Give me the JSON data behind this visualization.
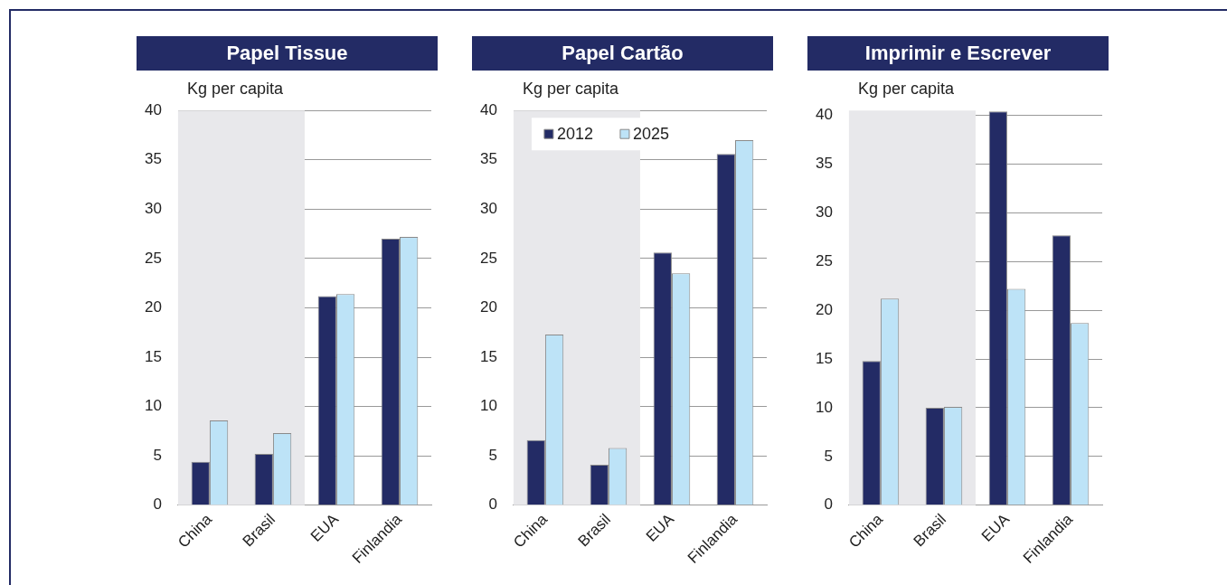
{
  "chart_data": [
    {
      "type": "bar",
      "title": "Papel Tissue",
      "ylabel": "Kg per capita",
      "categories": [
        "China",
        "Brasil",
        "EUA",
        "Finlandia"
      ],
      "series": [
        {
          "color": "#232b65",
          "values": [
            4.4,
            5.2,
            21.2,
            27.0
          ]
        },
        {
          "color": "#bde3f7",
          "values": [
            8.6,
            7.3,
            21.4,
            27.2
          ]
        }
      ],
      "ylim": [
        0,
        40
      ],
      "yticks": [
        0,
        5,
        10,
        15,
        20,
        25,
        30,
        35,
        40
      ],
      "grid": "y",
      "legend": false,
      "bands": [
        {
          "axis": "x",
          "from": "China",
          "to": "Brasil",
          "color": "#e8e8eb"
        }
      ]
    },
    {
      "type": "bar",
      "title": "Papel Cartão",
      "ylabel": "Kg per capita",
      "categories": [
        "China",
        "Brasil",
        "EUA",
        "Finlandia"
      ],
      "series": [
        {
          "name": "2012",
          "color": "#232b65",
          "values": [
            6.6,
            4.1,
            25.6,
            35.6
          ]
        },
        {
          "name": "2025",
          "color": "#bde3f7",
          "values": [
            17.3,
            5.8,
            23.5,
            37.0
          ]
        }
      ],
      "ylim": [
        0,
        40
      ],
      "yticks": [
        0,
        5,
        10,
        15,
        20,
        25,
        30,
        35,
        40
      ],
      "grid": "y",
      "legend": "top left",
      "bands": [
        {
          "axis": "x",
          "from": "China",
          "to": "Brasil",
          "color": "#e8e8eb"
        }
      ]
    },
    {
      "type": "bar",
      "title": "Imprimir e Escrever",
      "ylabel": "Kg per capita",
      "categories": [
        "China",
        "Brasil",
        "EUA",
        "Finlandia"
      ],
      "series": [
        {
          "color": "#232b65",
          "values": [
            14.8,
            10.0,
            40.4,
            27.7
          ]
        },
        {
          "color": "#bde3f7",
          "values": [
            21.2,
            10.1,
            22.2,
            18.7
          ]
        }
      ],
      "ylim": [
        0,
        40.5
      ],
      "yticks": [
        0,
        5,
        10,
        15,
        20,
        25,
        30,
        35,
        40
      ],
      "grid": "y",
      "legend": false,
      "bands": [
        {
          "axis": "x",
          "from": "China",
          "to": "Brasil",
          "color": "#e8e8eb"
        }
      ]
    }
  ]
}
